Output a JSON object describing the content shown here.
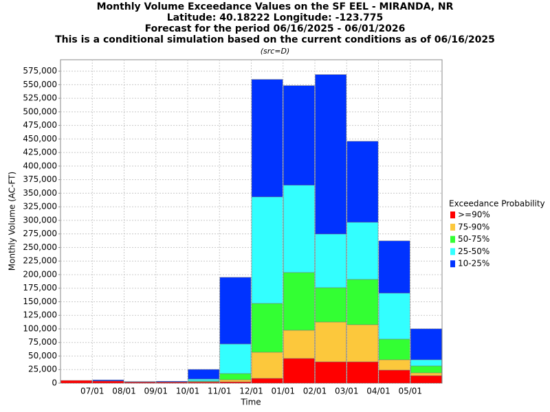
{
  "chart_data": {
    "type": "stacked_bar",
    "title": "Monthly Volume Exceedance Values on the SF EEL - MIRANDA, NR",
    "subtitle_lines": [
      "Latitude: 40.18222 Longitude: -123.775",
      "Forecast for the period 06/16/2025 - 06/01/2026",
      "This is a conditional simulation based on the current conditions as of 06/16/2025",
      "(src=D)"
    ],
    "x_label": "Time",
    "y_label": "Monthly Volume (AC-FT)",
    "legend_title": "Exceedance Probability",
    "categories": [
      null,
      "07/01",
      "08/01",
      "09/01",
      "10/01",
      "11/01",
      "12/01",
      "01/01",
      "02/01",
      "03/01",
      "04/01",
      "05/01"
    ],
    "series": [
      {
        "name": ">=90%",
        "color": "#ff0000",
        "values": [
          5000,
          4000,
          2000,
          2000,
          2000,
          2500,
          8900,
          45600,
          39300,
          39300,
          24100,
          13900
        ]
      },
      {
        "name": "75-90%",
        "color": "#fcc83c",
        "values": [
          0,
          0,
          0,
          0,
          1000,
          3800,
          48100,
          51900,
          73400,
          68400,
          19000,
          5100
        ]
      },
      {
        "name": "50-75%",
        "color": "#33ff33",
        "values": [
          0,
          0,
          0,
          0,
          1000,
          11400,
          89900,
          106400,
          63300,
          83500,
          38000,
          12700
        ]
      },
      {
        "name": "25-50%",
        "color": "#33ffff",
        "values": [
          0,
          0,
          0,
          0,
          3600,
          54500,
          196300,
          160900,
          98800,
          105200,
          84800,
          11400
        ]
      },
      {
        "name": "10-25%",
        "color": "#0033ff",
        "values": [
          0,
          2000,
          1000,
          1500,
          17700,
          122800,
          216600,
          183600,
          293900,
          149400,
          96300,
          57000
        ]
      }
    ],
    "ylim": [
      0,
      596000
    ],
    "yticks": [
      0,
      {
        "value": 25000,
        "label": "25,000"
      },
      {
        "value": 50000,
        "label": "50,000"
      },
      {
        "value": 75000,
        "label": "75,000"
      },
      {
        "value": 100000,
        "label": "100,000"
      },
      {
        "value": 125000,
        "label": "125,000"
      },
      {
        "value": 150000,
        "label": "150,000"
      },
      {
        "value": 175000,
        "label": "175,000"
      },
      {
        "value": 200000,
        "label": "200,000"
      },
      {
        "value": 225000,
        "label": "225,000"
      },
      {
        "value": 250000,
        "label": "250,000"
      },
      {
        "value": 275000,
        "label": "275,000"
      },
      {
        "value": 300000,
        "label": "300,000"
      },
      {
        "value": 325000,
        "label": "325,000"
      },
      {
        "value": 350000,
        "label": "350,000"
      },
      {
        "value": 375000,
        "label": "375,000"
      },
      {
        "value": 400000,
        "label": "400,000"
      },
      {
        "value": 425000,
        "label": "425,000"
      },
      {
        "value": 450000,
        "label": "450,000"
      },
      {
        "value": 475000,
        "label": "475,000"
      },
      {
        "value": 500000,
        "label": "500,000"
      },
      {
        "value": 525000,
        "label": "525,000"
      },
      {
        "value": 550000,
        "label": "550,000"
      },
      {
        "value": 575000,
        "label": "575,000"
      }
    ],
    "grid": true,
    "legend_position": "right"
  }
}
